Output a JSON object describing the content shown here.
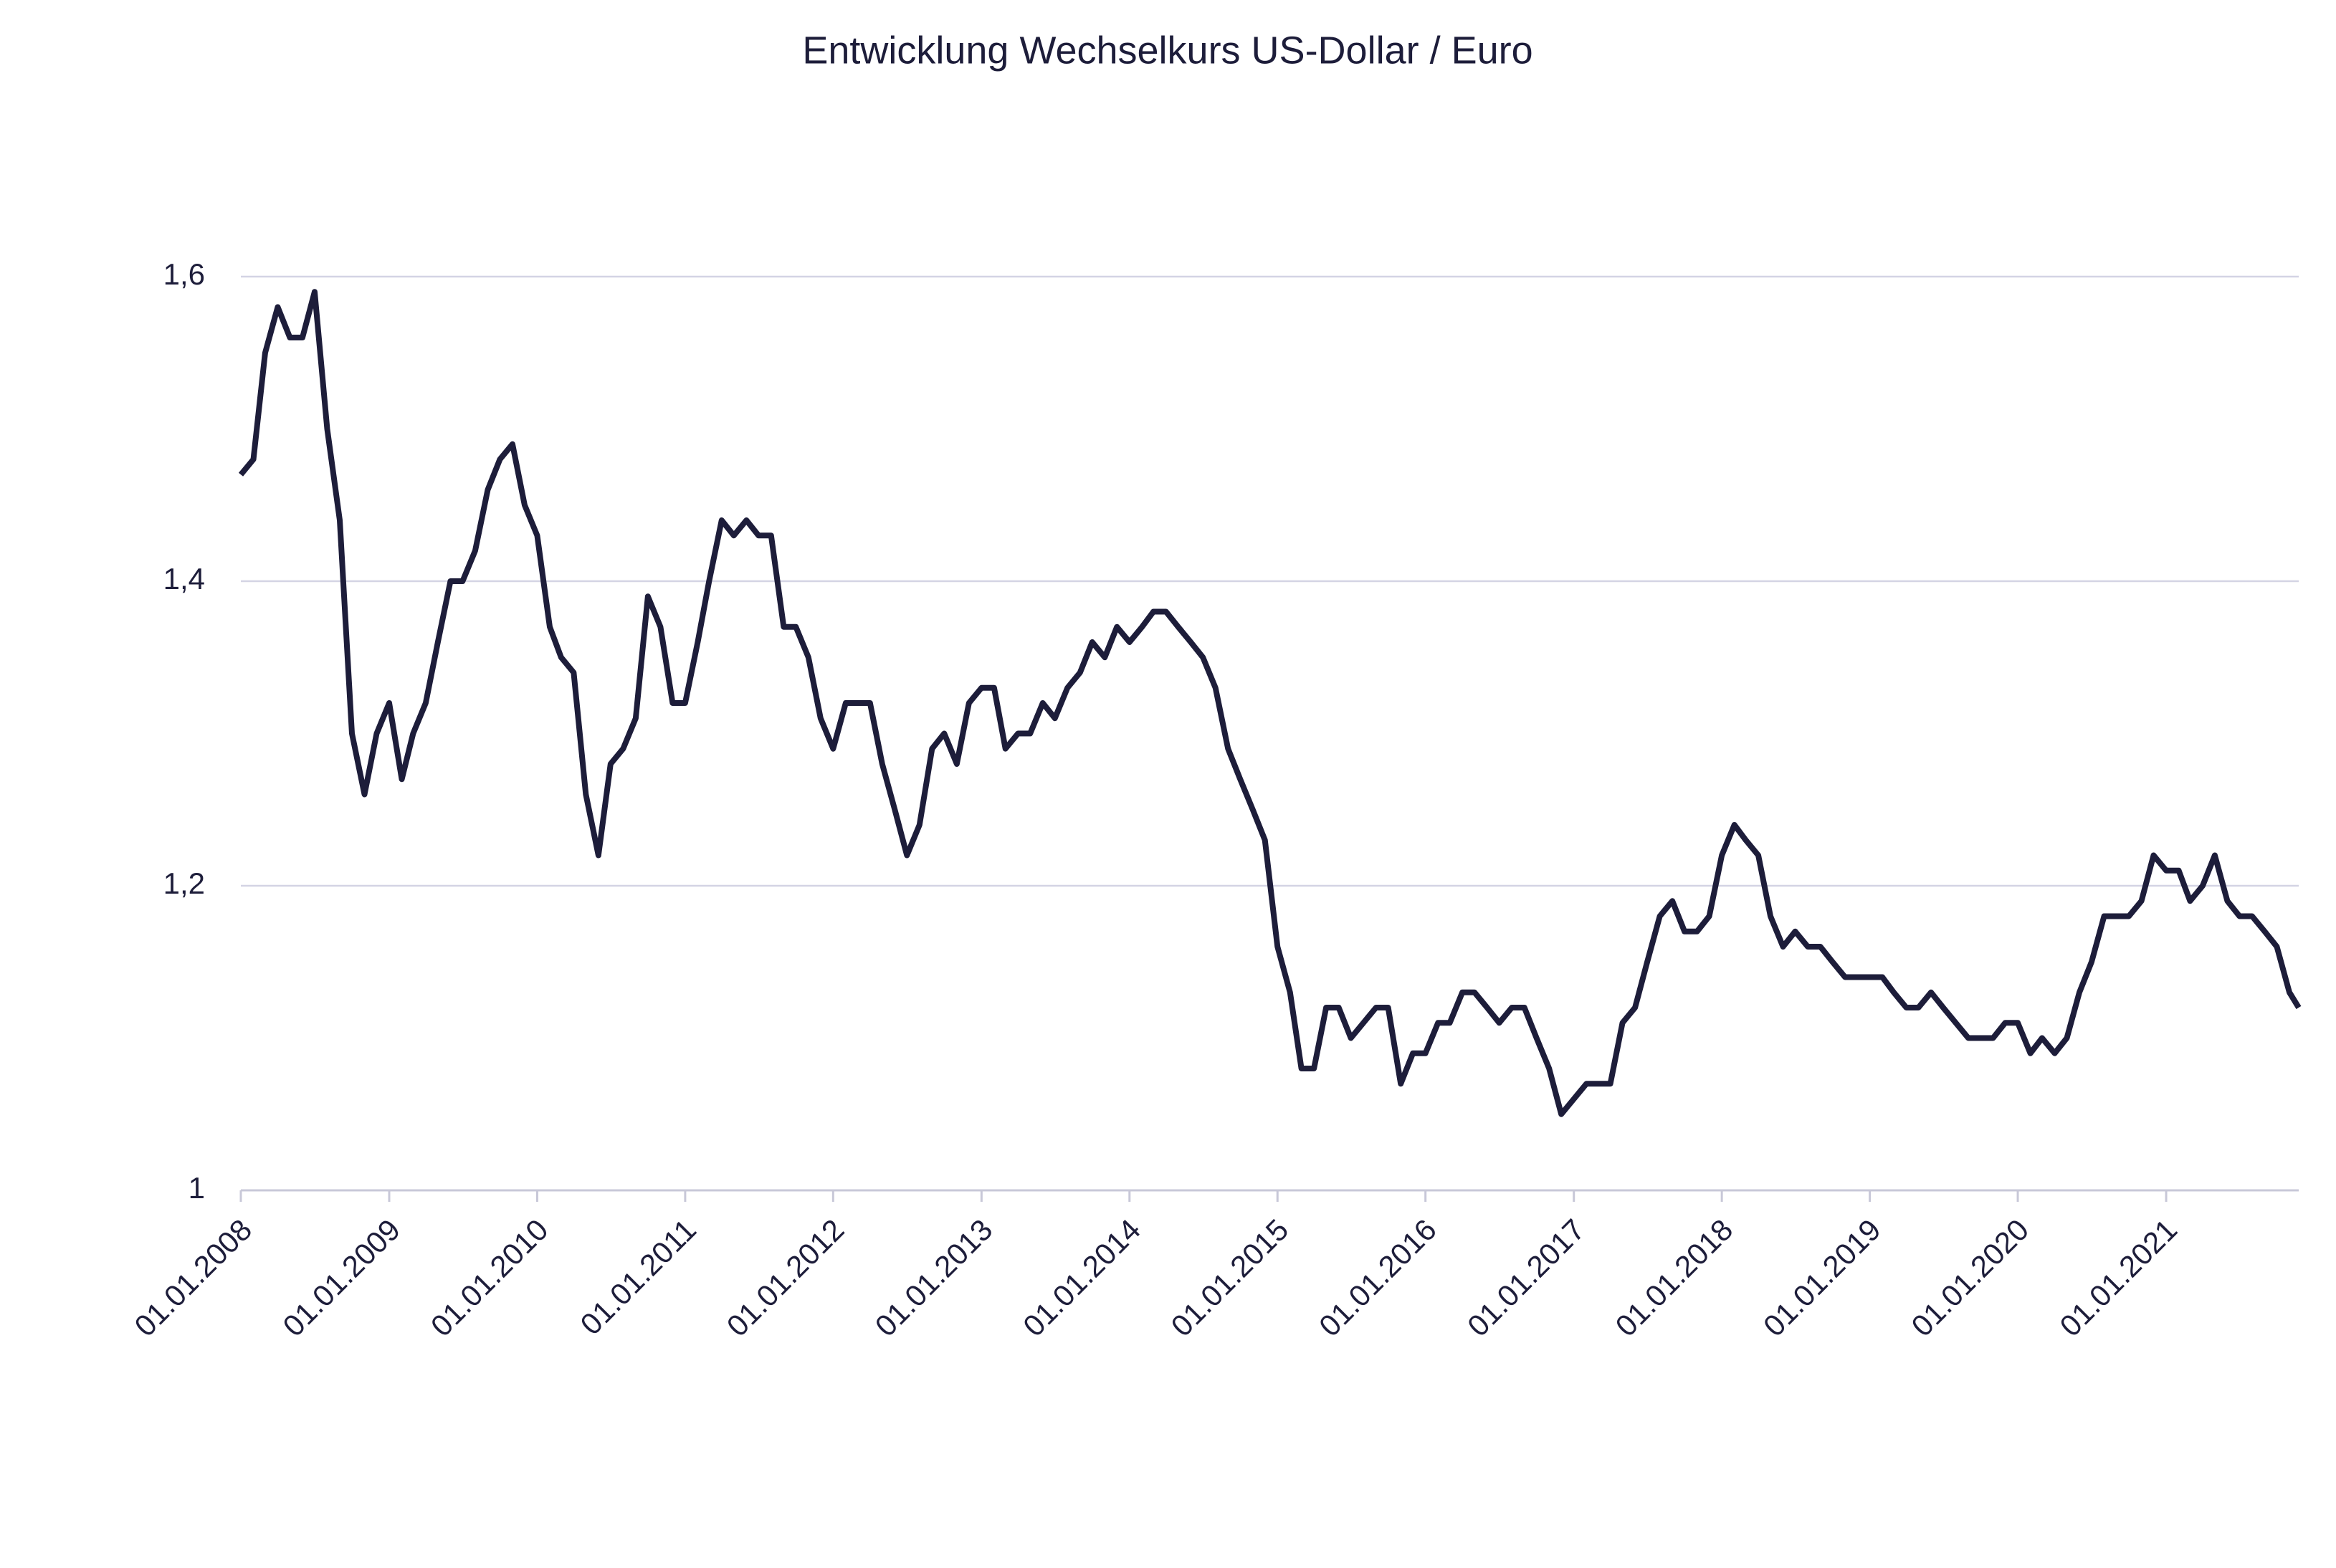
{
  "chart_data": {
    "type": "line",
    "title": "Entwicklung Wechselkurs US-Dollar / Euro",
    "x": [
      "2008-01-01",
      "2008-02-01",
      "2008-03-01",
      "2008-04-01",
      "2008-05-01",
      "2008-06-01",
      "2008-07-01",
      "2008-08-01",
      "2008-09-01",
      "2008-10-01",
      "2008-11-01",
      "2008-12-01",
      "2009-01-01",
      "2009-02-01",
      "2009-03-01",
      "2009-04-01",
      "2009-05-01",
      "2009-06-01",
      "2009-07-01",
      "2009-08-01",
      "2009-09-01",
      "2009-10-01",
      "2009-11-01",
      "2009-12-01",
      "2010-01-01",
      "2010-02-01",
      "2010-03-01",
      "2010-04-01",
      "2010-05-01",
      "2010-06-01",
      "2010-07-01",
      "2010-08-01",
      "2010-09-01",
      "2010-10-01",
      "2010-11-01",
      "2010-12-01",
      "2011-01-01",
      "2011-02-01",
      "2011-03-01",
      "2011-04-01",
      "2011-05-01",
      "2011-06-01",
      "2011-07-01",
      "2011-08-01",
      "2011-09-01",
      "2011-10-01",
      "2011-11-01",
      "2011-12-01",
      "2012-01-01",
      "2012-02-01",
      "2012-03-01",
      "2012-04-01",
      "2012-05-01",
      "2012-06-01",
      "2012-07-01",
      "2012-08-01",
      "2012-09-01",
      "2012-10-01",
      "2012-11-01",
      "2012-12-01",
      "2013-01-01",
      "2013-02-01",
      "2013-03-01",
      "2013-04-01",
      "2013-05-01",
      "2013-06-01",
      "2013-07-01",
      "2013-08-01",
      "2013-09-01",
      "2013-10-01",
      "2013-11-01",
      "2013-12-01",
      "2014-01-01",
      "2014-02-01",
      "2014-03-01",
      "2014-04-01",
      "2014-05-01",
      "2014-06-01",
      "2014-07-01",
      "2014-08-01",
      "2014-09-01",
      "2014-10-01",
      "2014-11-01",
      "2014-12-01",
      "2015-01-01",
      "2015-02-01",
      "2015-03-01",
      "2015-04-01",
      "2015-05-01",
      "2015-06-01",
      "2015-07-01",
      "2015-08-01",
      "2015-09-01",
      "2015-10-01",
      "2015-11-01",
      "2015-12-01",
      "2016-01-01",
      "2016-02-01",
      "2016-03-01",
      "2016-04-01",
      "2016-05-01",
      "2016-06-01",
      "2016-07-01",
      "2016-08-01",
      "2016-09-01",
      "2016-10-01",
      "2016-11-01",
      "2016-12-01",
      "2017-01-01",
      "2017-02-01",
      "2017-03-01",
      "2017-04-01",
      "2017-05-01",
      "2017-06-01",
      "2017-07-01",
      "2017-08-01",
      "2017-09-01",
      "2017-10-01",
      "2017-11-01",
      "2017-12-01",
      "2018-01-01",
      "2018-02-01",
      "2018-03-01",
      "2018-04-01",
      "2018-05-01",
      "2018-06-01",
      "2018-07-01",
      "2018-08-01",
      "2018-09-01",
      "2018-10-01",
      "2018-11-01",
      "2018-12-01",
      "2019-01-01",
      "2019-02-01",
      "2019-03-01",
      "2019-04-01",
      "2019-05-01",
      "2019-06-01",
      "2019-07-01",
      "2019-08-01",
      "2019-09-01",
      "2019-10-01",
      "2019-11-01",
      "2019-12-01",
      "2020-01-01",
      "2020-02-01",
      "2020-03-01",
      "2020-04-01",
      "2020-05-01",
      "2020-06-01",
      "2020-07-01",
      "2020-08-01",
      "2020-09-01",
      "2020-10-01",
      "2020-11-01",
      "2020-12-01",
      "2021-01-01",
      "2021-02-01",
      "2021-03-01",
      "2021-04-01",
      "2021-05-01",
      "2021-06-01",
      "2021-07-01",
      "2021-08-01",
      "2021-09-01",
      "2021-10-01",
      "2021-11-01",
      "2021-11-24"
    ],
    "series": [
      {
        "color": "#1d1d3a",
        "values": [
          1.47,
          1.48,
          1.55,
          1.58,
          1.56,
          1.56,
          1.59,
          1.5,
          1.44,
          1.3,
          1.26,
          1.3,
          1.32,
          1.27,
          1.3,
          1.32,
          1.36,
          1.4,
          1.4,
          1.42,
          1.46,
          1.48,
          1.49,
          1.45,
          1.43,
          1.37,
          1.35,
          1.34,
          1.26,
          1.22,
          1.28,
          1.29,
          1.31,
          1.39,
          1.37,
          1.32,
          1.32,
          1.36,
          1.4,
          1.44,
          1.43,
          1.44,
          1.43,
          1.43,
          1.37,
          1.37,
          1.35,
          1.31,
          1.29,
          1.32,
          1.32,
          1.32,
          1.28,
          1.25,
          1.22,
          1.24,
          1.29,
          1.3,
          1.28,
          1.32,
          1.33,
          1.33,
          1.29,
          1.3,
          1.3,
          1.32,
          1.31,
          1.33,
          1.34,
          1.36,
          1.35,
          1.37,
          1.36,
          1.37,
          1.38,
          1.38,
          1.37,
          1.36,
          1.35,
          1.33,
          1.29,
          1.27,
          1.25,
          1.23,
          1.16,
          1.13,
          1.08,
          1.08,
          1.12,
          1.12,
          1.1,
          1.11,
          1.12,
          1.12,
          1.07,
          1.09,
          1.09,
          1.11,
          1.11,
          1.13,
          1.13,
          1.12,
          1.11,
          1.12,
          1.12,
          1.1,
          1.08,
          1.05,
          1.06,
          1.07,
          1.07,
          1.07,
          1.11,
          1.12,
          1.15,
          1.18,
          1.19,
          1.17,
          1.17,
          1.18,
          1.22,
          1.24,
          1.23,
          1.22,
          1.18,
          1.16,
          1.17,
          1.16,
          1.16,
          1.15,
          1.14,
          1.14,
          1.14,
          1.14,
          1.13,
          1.12,
          1.12,
          1.13,
          1.12,
          1.11,
          1.1,
          1.1,
          1.1,
          1.11,
          1.11,
          1.09,
          1.1,
          1.09,
          1.1,
          1.13,
          1.15,
          1.18,
          1.18,
          1.18,
          1.19,
          1.22,
          1.21,
          1.21,
          1.19,
          1.2,
          1.22,
          1.19,
          1.18,
          1.18,
          1.17,
          1.16,
          1.13,
          1.12
        ]
      }
    ],
    "xlim": [
      "2008-01-01",
      "2021-11-24"
    ],
    "xticks": [
      {
        "value": "2008-01-01",
        "label": "01.01.2008"
      },
      {
        "value": "2009-01-01",
        "label": "01.01.2009"
      },
      {
        "value": "2010-01-01",
        "label": "01.01.2010"
      },
      {
        "value": "2011-01-01",
        "label": "01.01.2011"
      },
      {
        "value": "2012-01-01",
        "label": "01.01.2012"
      },
      {
        "value": "2013-01-01",
        "label": "01.01.2013"
      },
      {
        "value": "2014-01-01",
        "label": "01.01.2014"
      },
      {
        "value": "2015-01-01",
        "label": "01.01.2015"
      },
      {
        "value": "2016-01-01",
        "label": "01.01.2016"
      },
      {
        "value": "2017-01-01",
        "label": "01.01.2017"
      },
      {
        "value": "2018-01-01",
        "label": "01.01.2018"
      },
      {
        "value": "2019-01-01",
        "label": "01.01.2019"
      },
      {
        "value": "2020-01-01",
        "label": "01.01.2020"
      },
      {
        "value": "2021-01-01",
        "label": "01.01.2021"
      }
    ],
    "ylim": [
      1,
      1.6
    ],
    "yticks": [
      1,
      {
        "value": 1.2,
        "label": "1,2"
      },
      {
        "value": 1.4,
        "label": "1,4"
      },
      {
        "value": 1.6,
        "label": "1,6"
      }
    ],
    "grid": true
  }
}
